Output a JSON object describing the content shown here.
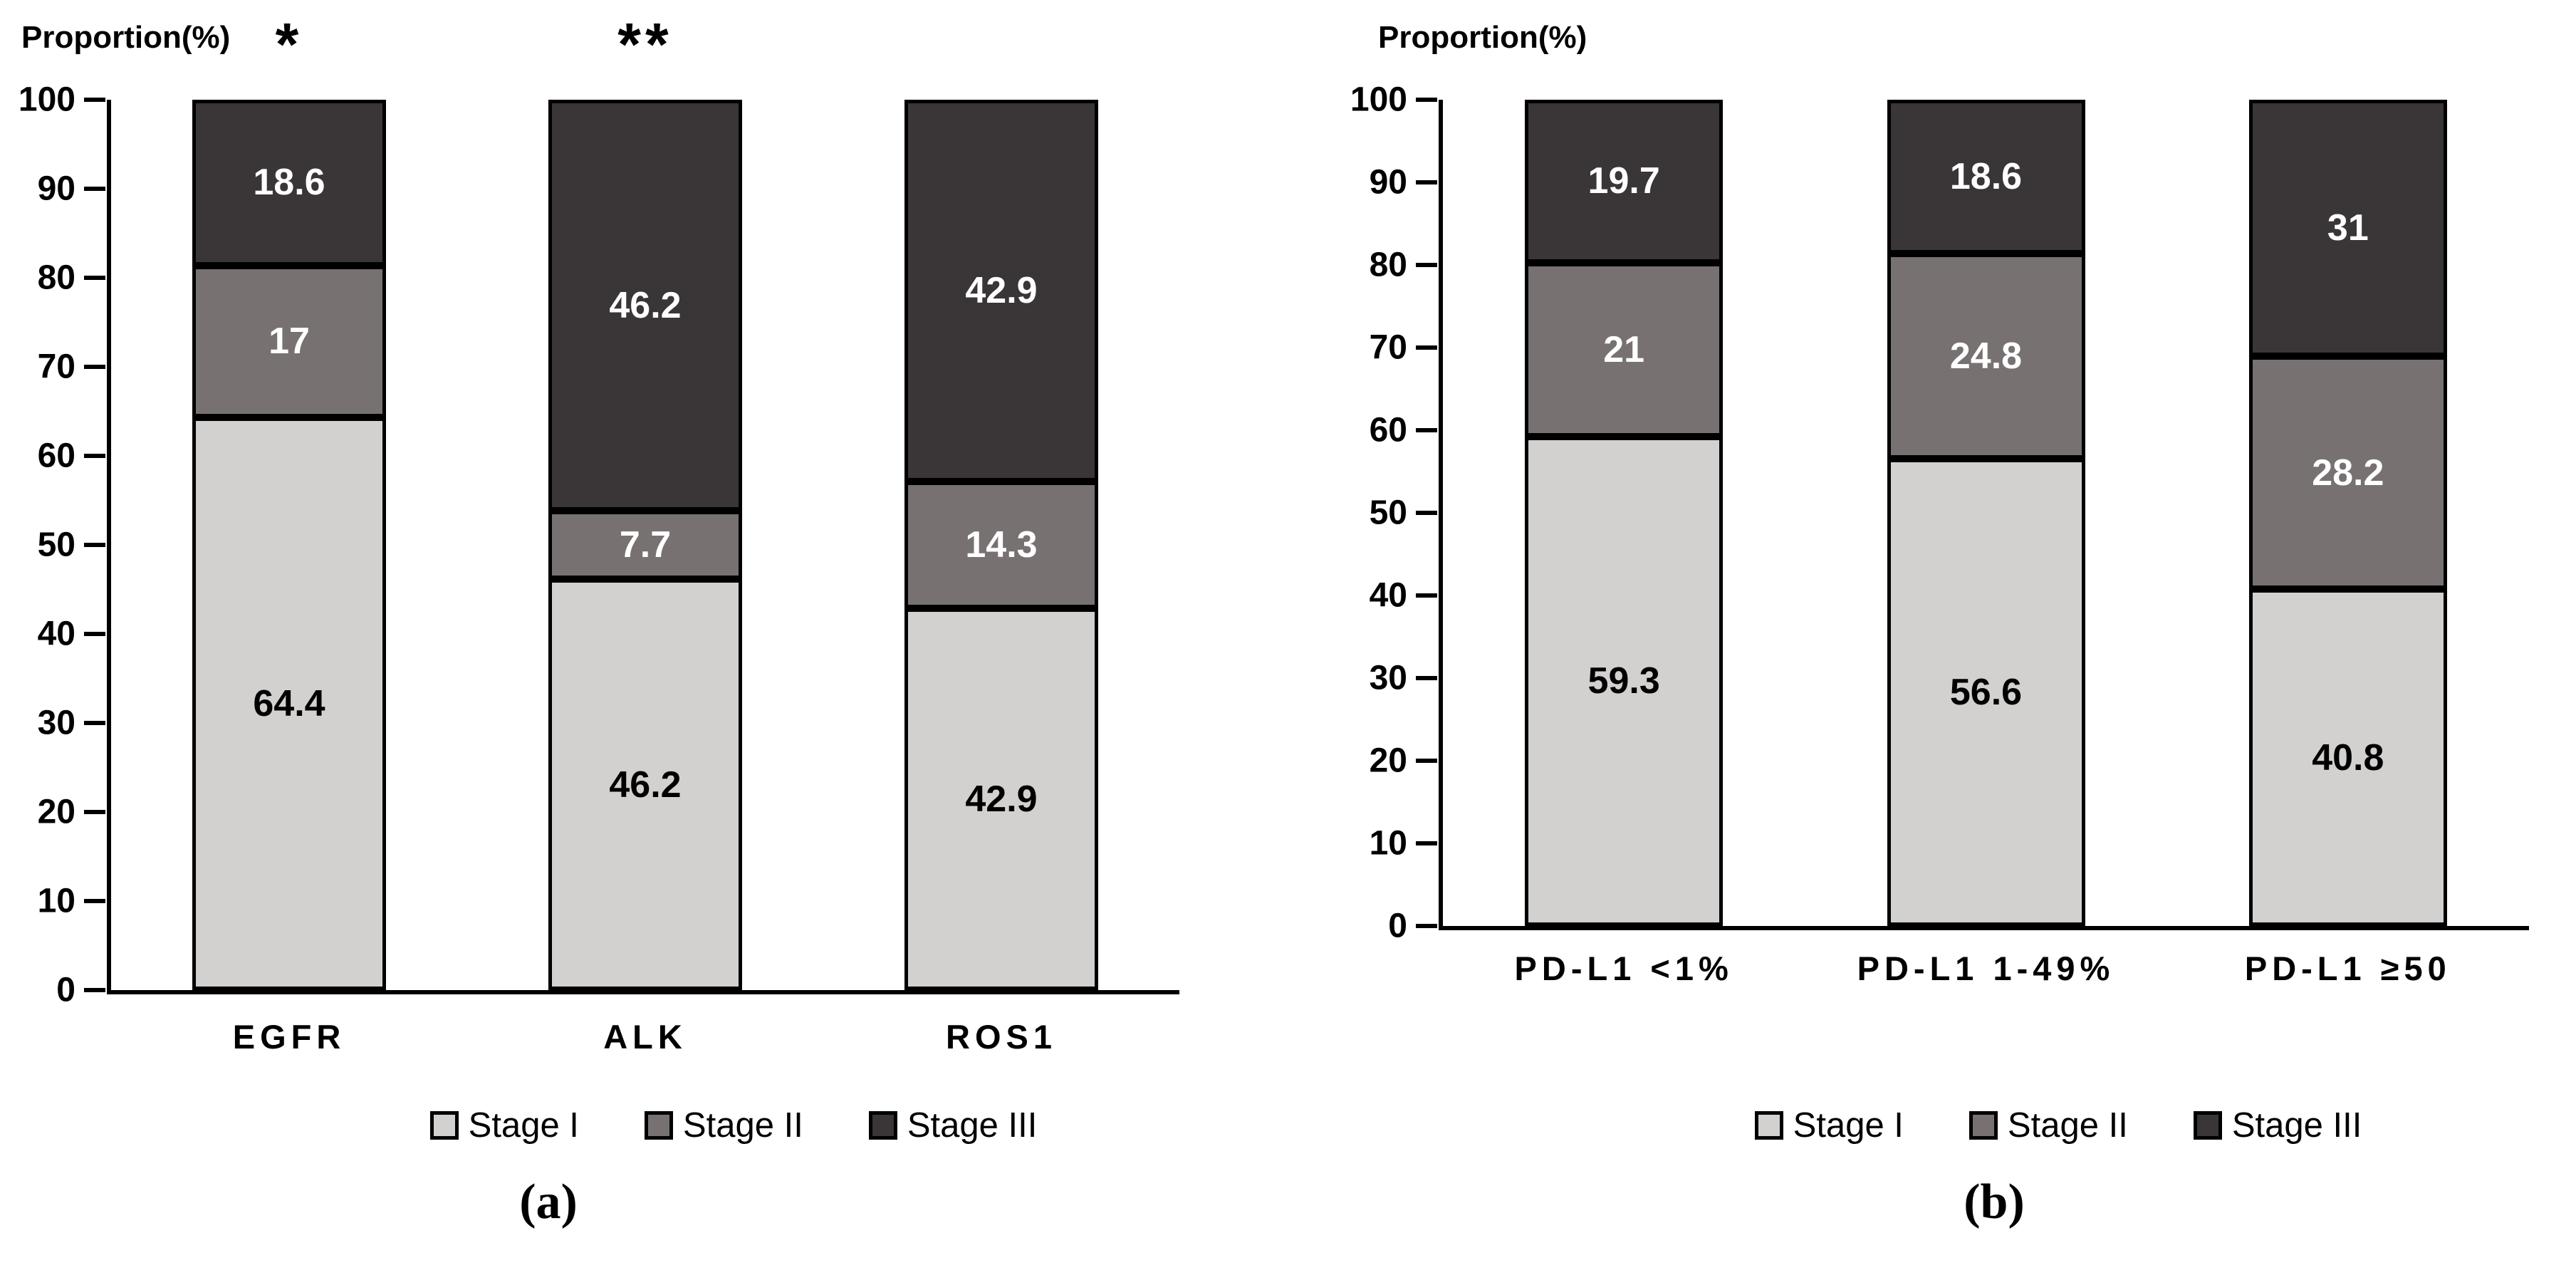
{
  "colors": {
    "stage1": "#d3d1cf",
    "stage2": "#777172",
    "stage3": "#3a3536",
    "axis": "#000000",
    "label_on_light": "#000000",
    "label_on_dark": "#ffffff"
  },
  "chart_data": [
    {
      "id": "a",
      "type": "bar",
      "subtype": "stacked-column",
      "title": "Proportion(%)",
      "caption": "(a)",
      "categories": [
        "EGFR",
        "ALK",
        "ROS1"
      ],
      "annotations": [
        "*",
        "**",
        ""
      ],
      "ylim": [
        0,
        100
      ],
      "yticks": [
        "100",
        "90",
        "80",
        "70",
        "60",
        "50",
        "40",
        "30",
        "20",
        "10",
        "0"
      ],
      "grid": false,
      "legend_position": "bottom",
      "series": [
        {
          "name": "Stage I",
          "color_key": "stage1",
          "values": [
            64.4,
            46.2,
            42.9
          ],
          "labels": [
            "64.4",
            "46.2",
            "42.9"
          ]
        },
        {
          "name": "Stage II",
          "color_key": "stage2",
          "values": [
            17,
            7.7,
            14.3
          ],
          "labels": [
            "17",
            "7.7",
            "14.3"
          ]
        },
        {
          "name": "Stage III",
          "color_key": "stage3",
          "values": [
            18.6,
            46.2,
            42.9
          ],
          "labels": [
            "18.6",
            "46.2",
            "42.9"
          ]
        }
      ]
    },
    {
      "id": "b",
      "type": "bar",
      "subtype": "stacked-column",
      "title": "Proportion(%)",
      "caption": "(b)",
      "categories": [
        "PD-L1 <1%",
        "PD-L1 1-49%",
        "PD-L1 ≥50"
      ],
      "annotations": [
        "",
        "",
        ""
      ],
      "ylim": [
        0,
        100
      ],
      "yticks": [
        "100",
        "90",
        "80",
        "70",
        "60",
        "50",
        "40",
        "30",
        "20",
        "10",
        "0"
      ],
      "grid": false,
      "legend_position": "bottom",
      "series": [
        {
          "name": "Stage I",
          "color_key": "stage1",
          "values": [
            59.3,
            56.6,
            40.8
          ],
          "labels": [
            "59.3",
            "56.6",
            "40.8"
          ]
        },
        {
          "name": "Stage II",
          "color_key": "stage2",
          "values": [
            21,
            24.8,
            28.2
          ],
          "labels": [
            "21",
            "24.8",
            "28.2"
          ]
        },
        {
          "name": "Stage III",
          "color_key": "stage3",
          "values": [
            19.7,
            18.6,
            31
          ],
          "labels": [
            "19.7",
            "18.6",
            "31"
          ]
        }
      ]
    }
  ]
}
